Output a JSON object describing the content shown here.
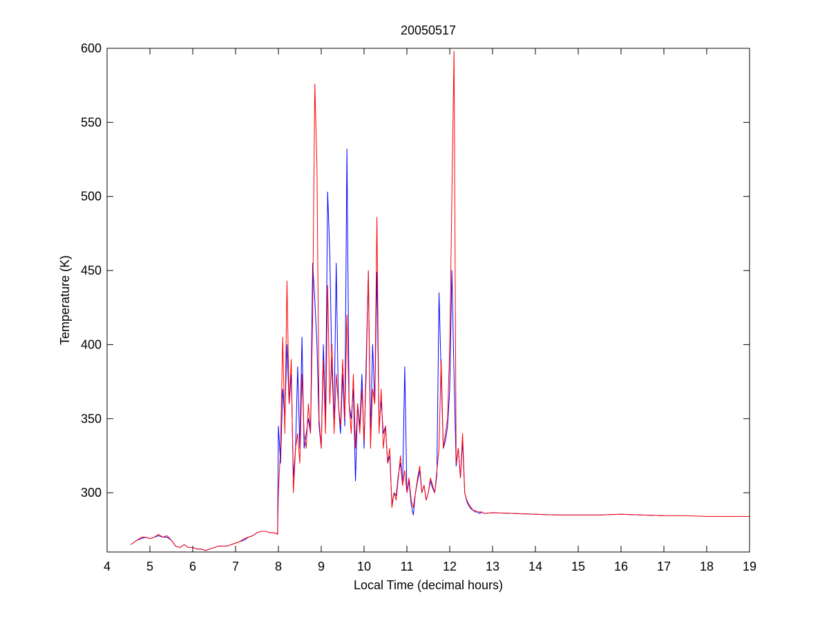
{
  "chart_data": {
    "type": "line",
    "title": "20050517",
    "xlabel": "Local Time (decimal hours)",
    "ylabel": "Temperature (K)",
    "xlim": [
      4,
      19
    ],
    "ylim": [
      260,
      600
    ],
    "xticks": [
      4,
      5,
      6,
      7,
      8,
      9,
      10,
      11,
      12,
      13,
      14,
      15,
      16,
      17,
      18,
      19
    ],
    "yticks": [
      300,
      350,
      400,
      450,
      500,
      550,
      600
    ],
    "grid": false,
    "x": [
      4.55,
      4.6,
      4.7,
      4.8,
      4.9,
      5.0,
      5.1,
      5.2,
      5.3,
      5.4,
      5.5,
      5.6,
      5.7,
      5.8,
      5.9,
      6.0,
      6.1,
      6.2,
      6.3,
      6.4,
      6.5,
      6.6,
      6.7,
      6.8,
      6.9,
      7.0,
      7.1,
      7.2,
      7.3,
      7.4,
      7.5,
      7.6,
      7.7,
      7.8,
      7.9,
      7.98,
      8.0,
      8.05,
      8.1,
      8.15,
      8.2,
      8.25,
      8.3,
      8.35,
      8.4,
      8.45,
      8.5,
      8.55,
      8.6,
      8.65,
      8.7,
      8.75,
      8.8,
      8.85,
      8.9,
      8.95,
      9.0,
      9.05,
      9.1,
      9.15,
      9.2,
      9.25,
      9.3,
      9.35,
      9.4,
      9.45,
      9.5,
      9.55,
      9.6,
      9.65,
      9.7,
      9.75,
      9.8,
      9.85,
      9.9,
      9.95,
      10.0,
      10.05,
      10.1,
      10.15,
      10.2,
      10.25,
      10.3,
      10.35,
      10.4,
      10.45,
      10.5,
      10.55,
      10.6,
      10.65,
      10.7,
      10.75,
      10.8,
      10.85,
      10.9,
      10.95,
      11.0,
      11.05,
      11.1,
      11.15,
      11.2,
      11.25,
      11.3,
      11.35,
      11.4,
      11.45,
      11.5,
      11.55,
      11.6,
      11.65,
      11.7,
      11.75,
      11.8,
      11.85,
      11.9,
      11.95,
      12.0,
      12.05,
      12.1,
      12.15,
      12.2,
      12.25,
      12.3,
      12.35,
      12.4,
      12.45,
      12.5,
      12.55,
      12.6,
      12.65,
      12.7,
      12.75,
      12.8,
      13.0,
      13.5,
      14.0,
      14.5,
      15.0,
      15.5,
      16.0,
      16.5,
      17.0,
      17.5,
      18.0,
      18.5,
      19.0
    ],
    "series": [
      {
        "color": "#0000ff",
        "values": [
          265,
          266,
          268,
          269,
          270,
          269,
          270,
          271,
          270,
          270,
          268,
          264,
          263,
          265,
          263,
          263,
          262,
          262,
          261,
          262,
          263,
          264,
          264,
          264,
          265,
          266,
          267,
          268,
          270,
          271,
          273,
          274,
          274,
          273,
          273,
          272,
          345,
          320,
          370,
          350,
          400,
          360,
          380,
          310,
          330,
          385,
          330,
          405,
          330,
          340,
          350,
          340,
          455,
          430,
          400,
          345,
          330,
          400,
          350,
          503,
          461,
          380,
          350,
          455,
          360,
          340,
          380,
          345,
          532,
          360,
          350,
          370,
          308,
          360,
          345,
          380,
          330,
          390,
          449,
          340,
          400,
          360,
          449,
          345,
          362,
          340,
          345,
          320,
          325,
          292,
          300,
          298,
          312,
          320,
          305,
          385,
          300,
          308,
          292,
          285,
          300,
          308,
          315,
          300,
          305,
          295,
          300,
          308,
          303,
          300,
          312,
          435,
          380,
          330,
          335,
          345,
          370,
          450,
          380,
          318,
          330,
          310,
          335,
          300,
          294,
          291,
          289,
          288,
          287,
          287,
          286,
          287,
          286,
          286.5,
          286,
          285.5,
          285,
          285,
          285,
          285.5,
          285,
          284.5,
          null,
          null,
          null,
          null
        ]
      },
      {
        "color": "#ff0000",
        "values": [
          265,
          266,
          268,
          270,
          270,
          269,
          270,
          272,
          270,
          271,
          268,
          264,
          263,
          265,
          263,
          263,
          262,
          262,
          261,
          262,
          263,
          264,
          264,
          264,
          265,
          266,
          267,
          269,
          270,
          271,
          273,
          274,
          274,
          273,
          273,
          272,
          300,
          330,
          405,
          340,
          443,
          360,
          390,
          300,
          330,
          340,
          320,
          380,
          340,
          330,
          360,
          340,
          420,
          576,
          521,
          350,
          330,
          390,
          340,
          440,
          360,
          400,
          340,
          380,
          360,
          345,
          390,
          350,
          420,
          360,
          340,
          380,
          330,
          360,
          340,
          370,
          335,
          380,
          450,
          330,
          370,
          360,
          486,
          340,
          370,
          330,
          345,
          320,
          330,
          290,
          300,
          295,
          310,
          325,
          305,
          315,
          300,
          310,
          295,
          290,
          300,
          310,
          318,
          300,
          305,
          295,
          300,
          310,
          305,
          300,
          315,
          330,
          390,
          330,
          340,
          350,
          400,
          499,
          598,
          320,
          330,
          310,
          340,
          300,
          295,
          292,
          290,
          288,
          288,
          287,
          287,
          287,
          286,
          286.5,
          286,
          285.5,
          285,
          285,
          285,
          285.5,
          285,
          284.5,
          284.5,
          284,
          284,
          284
        ]
      }
    ]
  }
}
